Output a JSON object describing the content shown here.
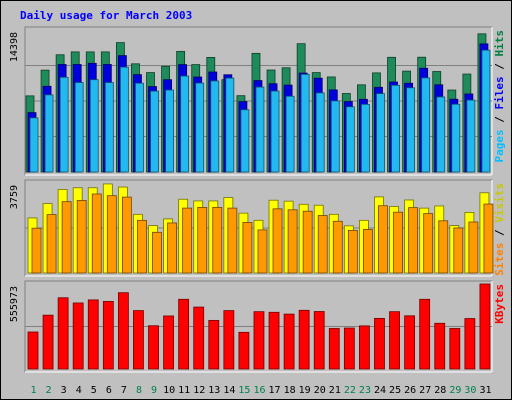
{
  "chart_data": {
    "type": "bar",
    "title": "Daily usage for March 2003",
    "days": [
      1,
      2,
      3,
      4,
      5,
      6,
      7,
      8,
      9,
      10,
      11,
      12,
      13,
      14,
      15,
      16,
      17,
      18,
      19,
      20,
      21,
      22,
      23,
      24,
      25,
      26,
      27,
      28,
      29,
      30,
      31
    ],
    "weekend_days": [
      1,
      2,
      8,
      9,
      15,
      16,
      22,
      23,
      29,
      30
    ],
    "panels": [
      {
        "id": "hits-files-pages",
        "max_label": "14398",
        "ymax": 14398,
        "legend": [
          {
            "text": "Pages",
            "color": "#00c0ff"
          },
          {
            "text": " / ",
            "color": "#000000"
          },
          {
            "text": "Files",
            "color": "#0000ff"
          },
          {
            "text": " / ",
            "color": "#000000"
          },
          {
            "text": "Hits",
            "color": "#008040"
          }
        ],
        "series": [
          {
            "name": "Hits",
            "color": "#1f8a5a",
            "values": [
              7720,
              10330,
              11890,
              12180,
              12180,
              12180,
              13120,
              10970,
              10080,
              10720,
              12230,
              10890,
              11620,
              9360,
              7740,
              12030,
              10340,
              10570,
              13010,
              10080,
              9640,
              7960,
              8840,
              10050,
              11630,
              10230,
              11640,
              10190,
              8310,
              9930,
              14010
            ]
          },
          {
            "name": "Files",
            "color": "#0000dd",
            "values": [
              6020,
              8690,
              10900,
              10900,
              11020,
              10900,
              11800,
              9870,
              8660,
              9360,
              10890,
              9630,
              10140,
              9860,
              7140,
              9270,
              8950,
              8810,
              10030,
              9510,
              8320,
              7140,
              7370,
              8590,
              9120,
              9000,
              10520,
              8840,
              7380,
              7910,
              12990
            ]
          },
          {
            "name": "Pages",
            "color": "#22b8f0",
            "values": [
              5490,
              7820,
              9600,
              9070,
              9360,
              9070,
              10630,
              9000,
              8200,
              8310,
              9730,
              9020,
              9230,
              9520,
              6310,
              8610,
              8210,
              7680,
              9900,
              8020,
              7210,
              6610,
              6860,
              7950,
              8790,
              8540,
              9540,
              7610,
              6870,
              7290,
              12350
            ]
          }
        ]
      },
      {
        "id": "visits-sites",
        "max_label": "3759",
        "ymax": 3759,
        "legend": [
          {
            "text": "Sites",
            "color": "#ff8000"
          },
          {
            "text": " / ",
            "color": "#000000"
          },
          {
            "text": "Visits",
            "color": "#c8c800"
          }
        ],
        "series": [
          {
            "name": "Visits",
            "color": "#ffff00",
            "values": [
              2300,
              2900,
              3490,
              3560,
              3560,
              3720,
              3590,
              2450,
              1980,
              2260,
              3080,
              3010,
              3010,
              3150,
              2500,
              2200,
              3040,
              3000,
              2870,
              2830,
              2450,
              1970,
              2200,
              3180,
              2780,
              3050,
              2710,
              2800,
              1980,
              2530,
              3350
            ]
          },
          {
            "name": "Sites",
            "color": "#ff9900",
            "values": [
              1870,
              2440,
              2980,
              3030,
              3300,
              3230,
              3170,
              2200,
              1700,
              2090,
              2710,
              2740,
              2740,
              2710,
              2110,
              1800,
              2680,
              2640,
              2580,
              2400,
              2160,
              1780,
              1820,
              2810,
              2540,
              2730,
              2480,
              2180,
              1880,
              2130,
              2880
            ]
          }
        ]
      },
      {
        "id": "kbytes",
        "max_label": "555973",
        "ymax": 555973,
        "legend": [
          {
            "text": "KBytes",
            "color": "#ff0000"
          }
        ],
        "series": [
          {
            "name": "KBytes",
            "color": "#ff0000",
            "values": [
              242000,
              352000,
              466000,
              432000,
              452000,
              442000,
              499000,
              382000,
              283000,
              347000,
              456000,
              405000,
              318000,
              382000,
              240000,
              375000,
              371000,
              359000,
              384000,
              376000,
              265000,
              268000,
              282000,
              331000,
              375000,
              348000,
              456000,
              299000,
              265000,
              330000,
              555973
            ]
          }
        ]
      }
    ]
  },
  "colors": {
    "frame": "#c0c0c0",
    "plot_bg": "#c0c0c0",
    "title": "#0000ff",
    "weekday_label": "#000000",
    "weekend_label": "#00804a"
  }
}
